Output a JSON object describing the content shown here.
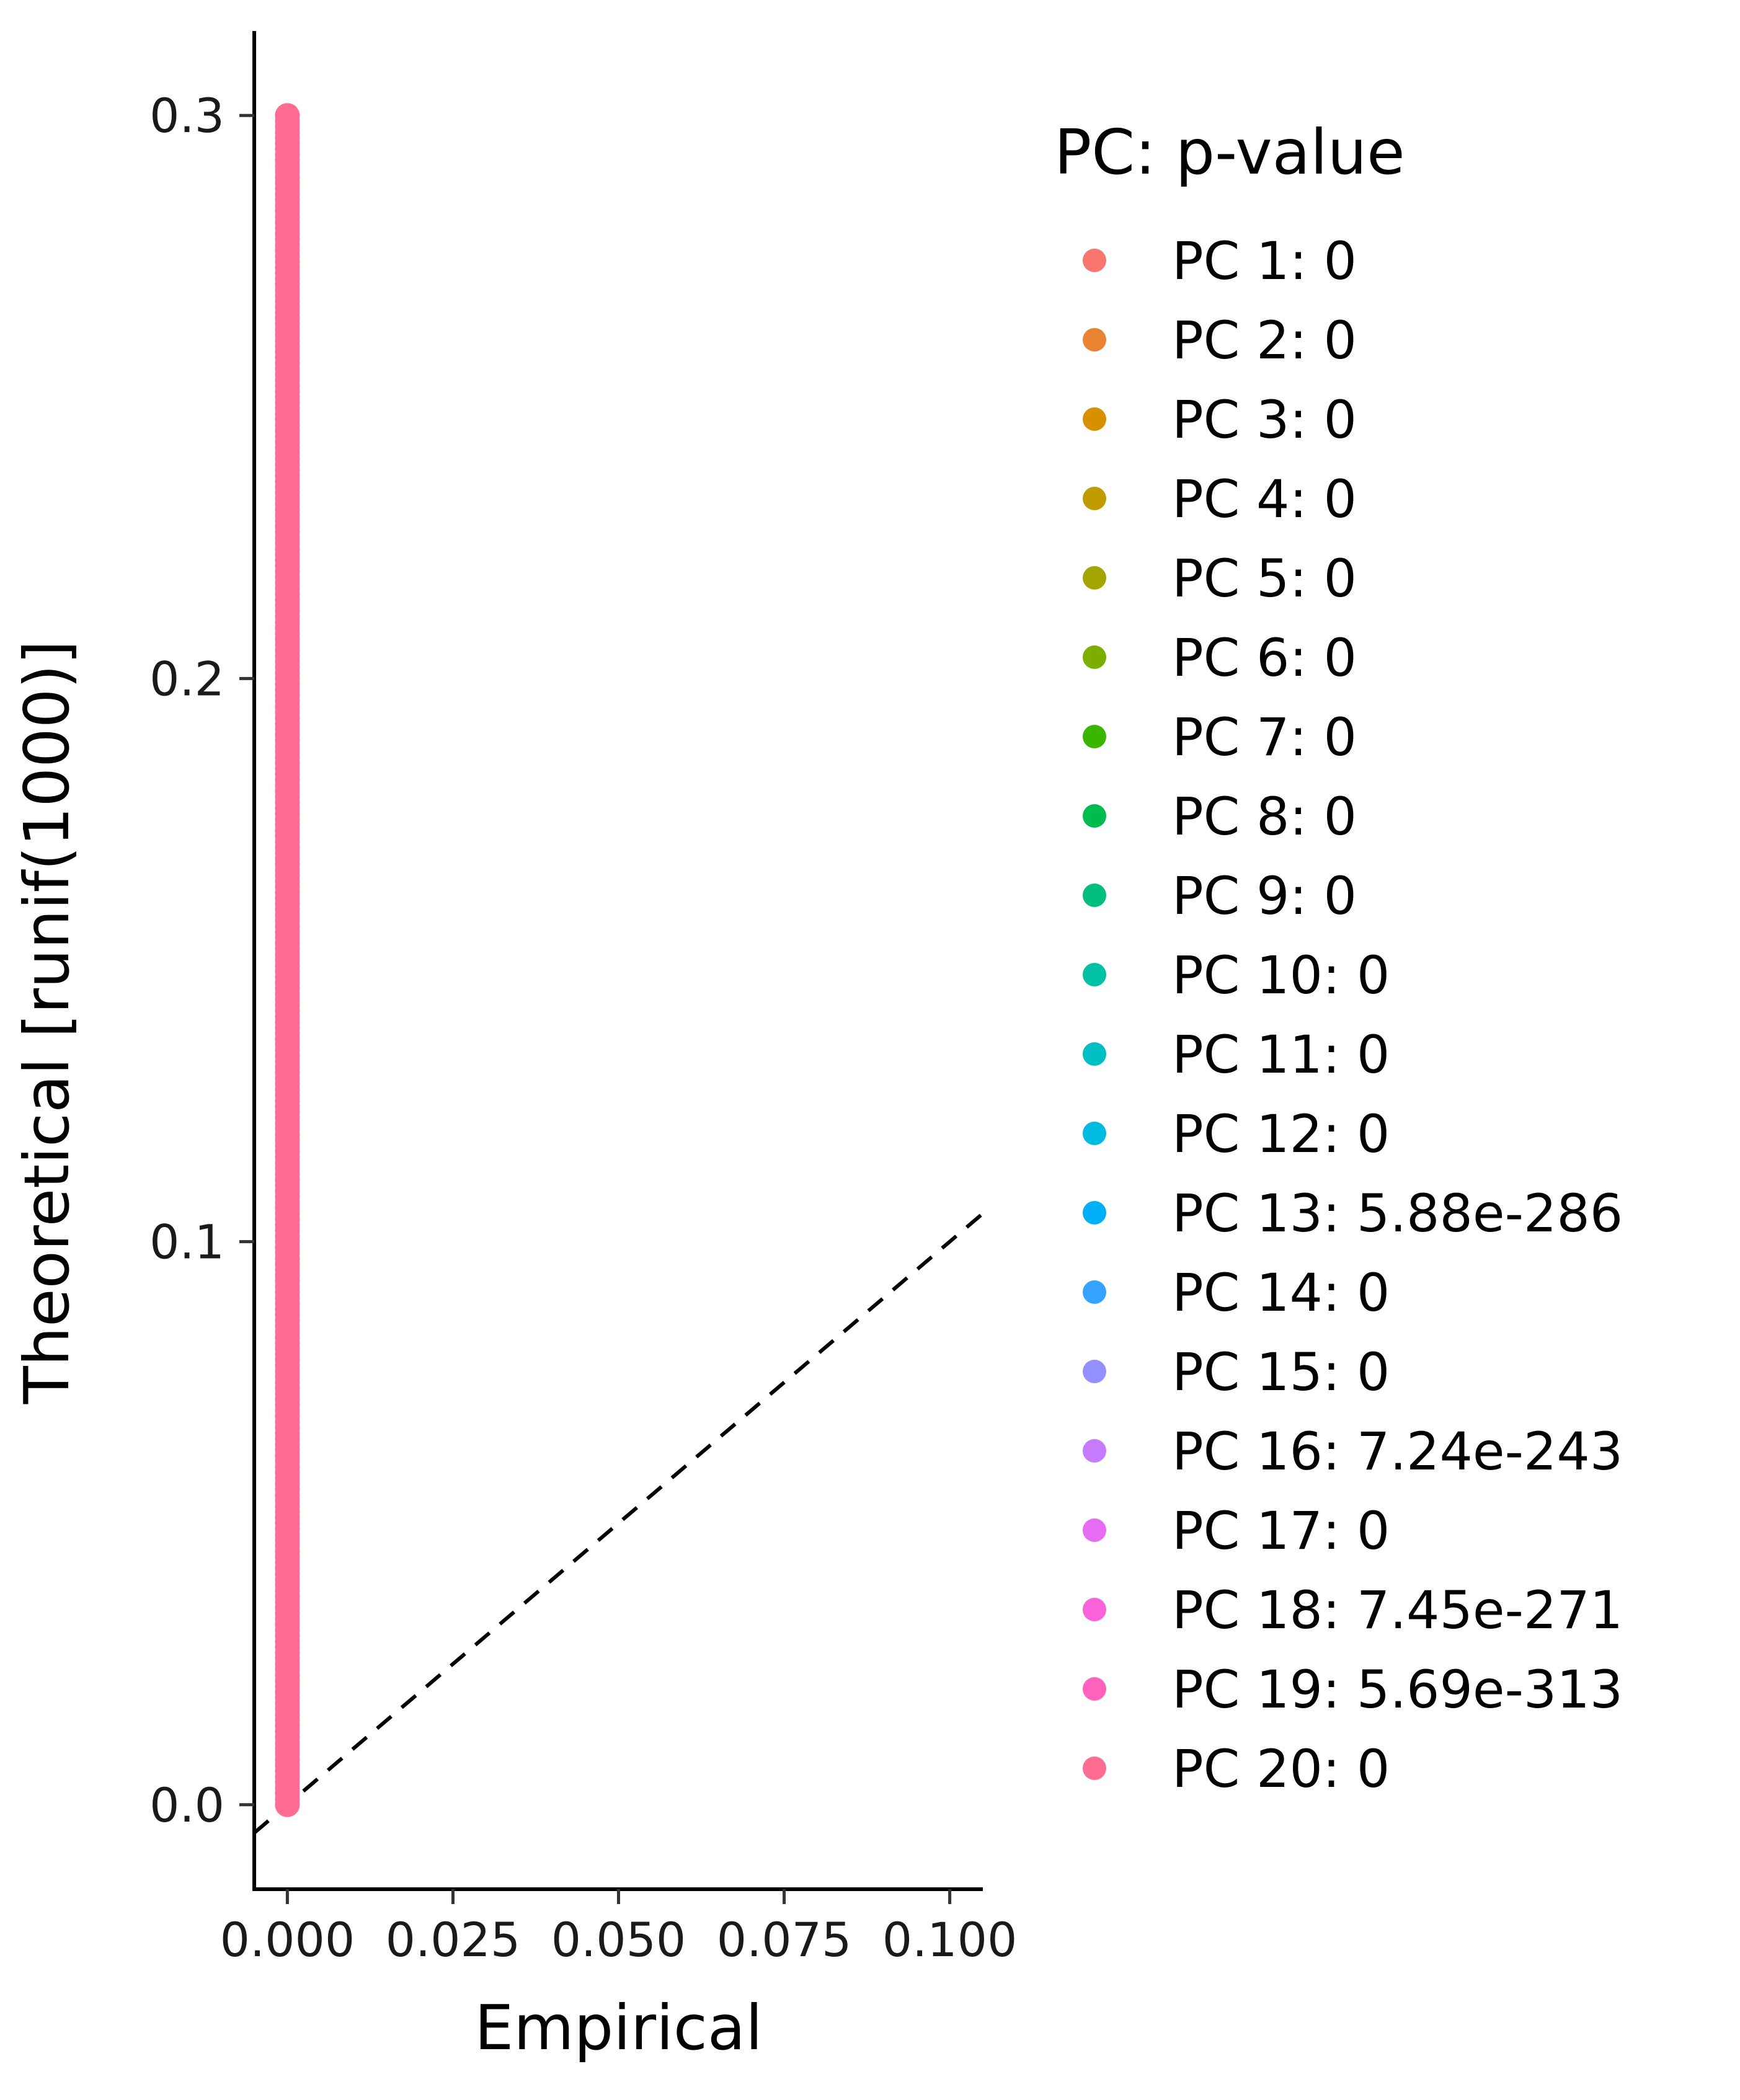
{
  "chart_data": {
    "type": "scatter",
    "xlabel": "Empirical",
    "ylabel": "Theoretical [runif(1000)]",
    "xlim": [
      -0.005,
      0.105
    ],
    "ylim": [
      -0.015,
      0.315
    ],
    "x_ticks": [
      0.0,
      0.025,
      0.05,
      0.075,
      0.1
    ],
    "x_tick_labels": [
      "0.000",
      "0.025",
      "0.050",
      "0.075",
      "0.100"
    ],
    "y_ticks": [
      0.0,
      0.1,
      0.2,
      0.3
    ],
    "y_tick_labels": [
      "0.0",
      "0.1",
      "0.2",
      "0.3"
    ],
    "grid": false,
    "reference_line": {
      "style": "dashed",
      "slope": 1,
      "intercept": 0,
      "color": "#000000"
    },
    "points": {
      "x": 0.0,
      "y_from": 0.0,
      "y_to": 0.3,
      "color": "#FF6C91"
    },
    "legend": {
      "title": "PC: p-value",
      "placement": "right",
      "entries": [
        {
          "label": "PC 1: 0",
          "color": "#F8766D"
        },
        {
          "label": "PC 2: 0",
          "color": "#EA8331"
        },
        {
          "label": "PC 3: 0",
          "color": "#D89000"
        },
        {
          "label": "PC 4: 0",
          "color": "#C09B00"
        },
        {
          "label": "PC 5: 0",
          "color": "#A3A500"
        },
        {
          "label": "PC 6: 0",
          "color": "#7CAE00"
        },
        {
          "label": "PC 7: 0",
          "color": "#39B600"
        },
        {
          "label": "PC 8: 0",
          "color": "#00BB4E"
        },
        {
          "label": "PC 9: 0",
          "color": "#00BF7D"
        },
        {
          "label": "PC 10: 0",
          "color": "#00C1A3"
        },
        {
          "label": "PC 11: 0",
          "color": "#00BFC4"
        },
        {
          "label": "PC 12: 0",
          "color": "#00BAE0"
        },
        {
          "label": "PC 13: 5.88e-286",
          "color": "#00B0F6"
        },
        {
          "label": "PC 14: 0",
          "color": "#35A2FF"
        },
        {
          "label": "PC 15: 0",
          "color": "#9590FF"
        },
        {
          "label": "PC 16: 7.24e-243",
          "color": "#C77CFF"
        },
        {
          "label": "PC 17: 0",
          "color": "#E76BF3"
        },
        {
          "label": "PC 18: 7.45e-271",
          "color": "#FA62DB"
        },
        {
          "label": "PC 19: 5.69e-313",
          "color": "#FF62BC"
        },
        {
          "label": "PC 20: 0",
          "color": "#FF6C91"
        }
      ]
    }
  }
}
